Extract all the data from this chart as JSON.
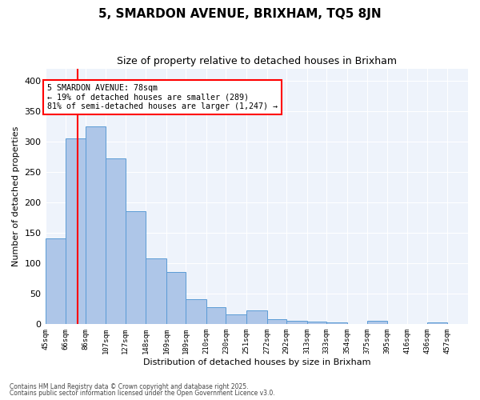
{
  "title1": "5, SMARDON AVENUE, BRIXHAM, TQ5 8JN",
  "title2": "Size of property relative to detached houses in Brixham",
  "xlabel": "Distribution of detached houses by size in Brixham",
  "ylabel": "Number of detached properties",
  "tick_labels": [
    "45sqm",
    "66sqm",
    "86sqm",
    "107sqm",
    "127sqm",
    "148sqm",
    "169sqm",
    "189sqm",
    "210sqm",
    "230sqm",
    "251sqm",
    "272sqm",
    "292sqm",
    "313sqm",
    "333sqm",
    "354sqm",
    "375sqm",
    "395sqm",
    "416sqm",
    "436sqm",
    "457sqm"
  ],
  "bin_edges": [
    45,
    66,
    86,
    107,
    127,
    148,
    169,
    189,
    210,
    230,
    251,
    272,
    292,
    313,
    333,
    354,
    375,
    395,
    416,
    436,
    457,
    478
  ],
  "heights": [
    140,
    305,
    325,
    272,
    185,
    108,
    85,
    40,
    27,
    15,
    22,
    8,
    5,
    4,
    2,
    0,
    5,
    0,
    0,
    3,
    0
  ],
  "bar_color": "#aec6e8",
  "bar_edge_color": "#5b9bd5",
  "red_line_x": 78,
  "annotation_text": "5 SMARDON AVENUE: 78sqm\n← 19% of detached houses are smaller (289)\n81% of semi-detached houses are larger (1,247) →",
  "annotation_box_color": "white",
  "annotation_box_edge": "red",
  "footer1": "Contains HM Land Registry data © Crown copyright and database right 2025.",
  "footer2": "Contains public sector information licensed under the Open Government Licence v3.0.",
  "bg_color": "#eef3fb",
  "yticks": [
    0,
    50,
    100,
    150,
    200,
    250,
    300,
    350,
    400
  ],
  "ylim": [
    0,
    420
  ],
  "xlim": [
    45,
    478
  ]
}
